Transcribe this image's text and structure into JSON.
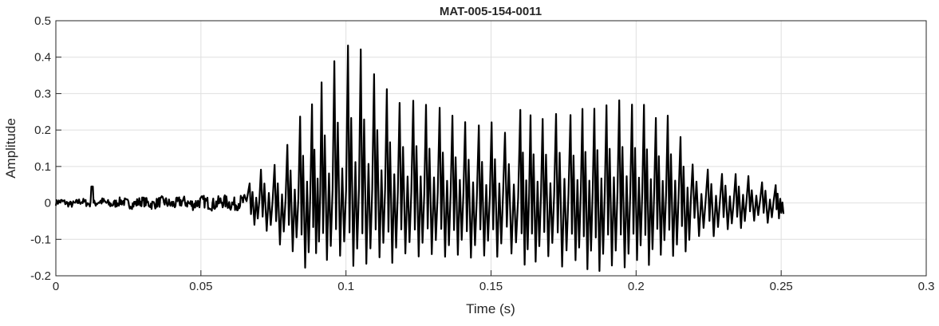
{
  "chart_data": {
    "type": "line",
    "title": "MAT-005-154-0011",
    "xlabel": "Time (s)",
    "ylabel": "Amplitude",
    "xlim": [
      0,
      0.3
    ],
    "ylim": [
      -0.2,
      0.5
    ],
    "xticks": [
      0,
      0.05,
      0.1,
      0.15,
      0.2,
      0.25,
      0.3
    ],
    "xtick_labels": [
      "0",
      "0.05",
      "0.1",
      "0.15",
      "0.2",
      "0.25",
      "0.3"
    ],
    "yticks": [
      -0.2,
      -0.1,
      0,
      0.1,
      0.2,
      0.3,
      0.4,
      0.5
    ],
    "ytick_labels": [
      "-0.2",
      "-0.1",
      "0",
      "0.1",
      "0.2",
      "0.3",
      "0.4",
      "0.5"
    ],
    "grid": true,
    "line_color": "#000000",
    "noise_segment": {
      "t_start": 0,
      "t_end": 0.066,
      "amplitude": 0.02,
      "spike": {
        "t": 0.0125,
        "y": 0.045
      }
    },
    "cycles": [
      {
        "t": 0.0668,
        "max": 0.055,
        "min": -0.06
      },
      {
        "t": 0.0707,
        "max": 0.09,
        "min": -0.08
      },
      {
        "t": 0.0754,
        "max": 0.1,
        "min": -0.11
      },
      {
        "t": 0.0798,
        "max": 0.157,
        "min": -0.13
      },
      {
        "t": 0.0842,
        "max": 0.233,
        "min": -0.18
      },
      {
        "t": 0.0883,
        "max": 0.27,
        "min": -0.14
      },
      {
        "t": 0.0916,
        "max": 0.33,
        "min": -0.16
      },
      {
        "t": 0.096,
        "max": 0.393,
        "min": -0.14
      },
      {
        "t": 0.1007,
        "max": 0.43,
        "min": -0.17
      },
      {
        "t": 0.1051,
        "max": 0.425,
        "min": -0.17
      },
      {
        "t": 0.1097,
        "max": 0.355,
        "min": -0.15
      },
      {
        "t": 0.1141,
        "max": 0.31,
        "min": -0.16
      },
      {
        "t": 0.1185,
        "max": 0.277,
        "min": -0.14
      },
      {
        "t": 0.1232,
        "max": 0.285,
        "min": -0.15
      },
      {
        "t": 0.1276,
        "max": 0.265,
        "min": -0.14
      },
      {
        "t": 0.1323,
        "max": 0.257,
        "min": -0.15
      },
      {
        "t": 0.1367,
        "max": 0.235,
        "min": -0.14
      },
      {
        "t": 0.1411,
        "max": 0.224,
        "min": -0.15
      },
      {
        "t": 0.1458,
        "max": 0.213,
        "min": -0.14
      },
      {
        "t": 0.1502,
        "max": 0.218,
        "min": -0.15
      },
      {
        "t": 0.1548,
        "max": 0.19,
        "min": -0.14
      },
      {
        "t": 0.1601,
        "max": 0.253,
        "min": -0.17
      },
      {
        "t": 0.1636,
        "max": 0.245,
        "min": -0.16
      },
      {
        "t": 0.1678,
        "max": 0.235,
        "min": -0.15
      },
      {
        "t": 0.1724,
        "max": 0.245,
        "min": -0.17
      },
      {
        "t": 0.1774,
        "max": 0.242,
        "min": -0.16
      },
      {
        "t": 0.1815,
        "max": 0.255,
        "min": -0.18
      },
      {
        "t": 0.1856,
        "max": 0.257,
        "min": -0.19
      },
      {
        "t": 0.1898,
        "max": 0.266,
        "min": -0.17
      },
      {
        "t": 0.1942,
        "max": 0.28,
        "min": -0.18
      },
      {
        "t": 0.1986,
        "max": 0.273,
        "min": -0.16
      },
      {
        "t": 0.2027,
        "max": 0.266,
        "min": -0.17
      },
      {
        "t": 0.2068,
        "max": 0.233,
        "min": -0.14
      },
      {
        "t": 0.2109,
        "max": 0.242,
        "min": -0.15
      },
      {
        "t": 0.2153,
        "max": 0.18,
        "min": -0.13
      },
      {
        "t": 0.2195,
        "max": 0.104,
        "min": -0.09
      },
      {
        "t": 0.2247,
        "max": 0.095,
        "min": -0.09
      },
      {
        "t": 0.2296,
        "max": 0.08,
        "min": -0.07
      },
      {
        "t": 0.2343,
        "max": 0.08,
        "min": -0.07
      },
      {
        "t": 0.2387,
        "max": 0.07,
        "min": -0.05
      },
      {
        "t": 0.2434,
        "max": 0.052,
        "min": -0.05
      },
      {
        "t": 0.2481,
        "max": 0.045,
        "min": -0.04
      }
    ],
    "end_point": {
      "t": 0.2508,
      "y": -0.03
    }
  }
}
